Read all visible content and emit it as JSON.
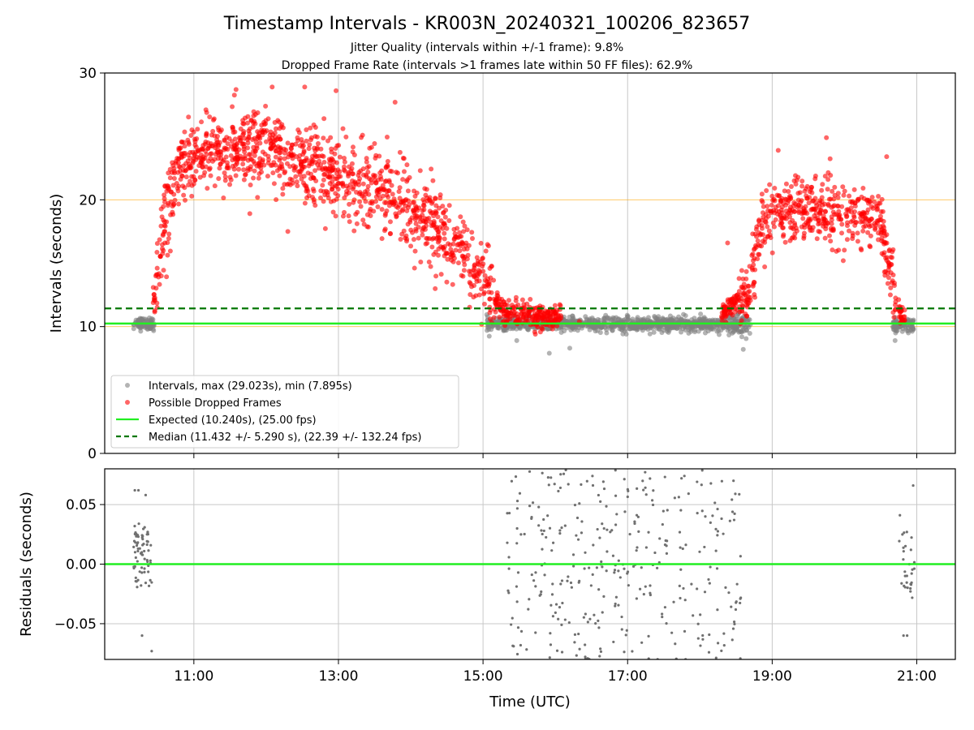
{
  "chart_data": {
    "type": "scatter",
    "title": "Timestamp Intervals - KR003N_20240321_100206_823657",
    "subtitle_lines": [
      "Jitter Quality (intervals within +/-1 frame): 9.8%",
      "Dropped Frame Rate (intervals >1 frames late within 50 FF files): 62.9%"
    ],
    "xlabel": "Time (UTC)",
    "x_ticks": [
      "11:00",
      "13:00",
      "15:00",
      "17:00",
      "19:00",
      "21:00"
    ],
    "x_range": [
      "09:46",
      "21:32"
    ],
    "grid": true,
    "top_panel": {
      "ylabel": "Intervals (seconds)",
      "ylim": [
        0,
        30
      ],
      "y_ticks": [
        "0",
        "10",
        "20",
        "30"
      ],
      "reference_lines": [
        {
          "y": 10,
          "color": "#ffa500"
        },
        {
          "y": 20,
          "color": "#ffa500"
        },
        {
          "y": 30,
          "color": "#ffa500"
        }
      ],
      "expected_line": {
        "y": 10.24,
        "color": "#22ee22"
      },
      "median_line": {
        "y": 11.432,
        "color": "#007700"
      },
      "legend": {
        "placement": "lower-left",
        "entries": [
          {
            "label": "Intervals, max (29.023s), min (7.895s)",
            "marker": "dot",
            "color": "#808080"
          },
          {
            "label": "Possible Dropped Frames",
            "marker": "dot",
            "color": "#ff0000"
          },
          {
            "label": "Expected (10.240s), (25.00 fps)",
            "marker": "line",
            "color": "#22ee22"
          },
          {
            "label": "Median (11.432 +/- 5.290 s), (22.39 +/- 132.24 fps)",
            "marker": "dashed",
            "color": "#007700"
          }
        ]
      },
      "series": [
        {
          "name": "Intervals",
          "color": "#808080",
          "segments": [
            {
              "from": "10:10",
              "to": "10:27",
              "mean": 10.24,
              "spread": 0.5
            },
            {
              "from": "15:03",
              "to": "18:15",
              "mean": 10.2,
              "spread": 0.55
            },
            {
              "from": "18:15",
              "to": "18:42",
              "mean": 10.1,
              "spread": 0.8
            },
            {
              "from": "20:40",
              "to": "20:58",
              "mean": 10.1,
              "spread": 0.6
            }
          ],
          "points": [
            [
              "15:55",
              7.9
            ],
            [
              "16:12",
              8.3
            ],
            [
              "18:36",
              8.2
            ],
            [
              "20:42",
              8.9
            ],
            [
              "15:28",
              8.9
            ]
          ]
        },
        {
          "name": "Possible Dropped Frames",
          "color": "#ff0000",
          "trend": [
            [
              "10:26",
              12.0
            ],
            [
              "10:35",
              18.0
            ],
            [
              "10:45",
              22.0
            ],
            [
              "11:00",
              23.5
            ],
            [
              "11:30",
              24.2
            ],
            [
              "12:00",
              23.8
            ],
            [
              "12:30",
              23.0
            ],
            [
              "13:00",
              21.8
            ],
            [
              "13:30",
              20.8
            ],
            [
              "14:00",
              19.2
            ],
            [
              "14:20",
              18.0
            ],
            [
              "14:40",
              16.0
            ],
            [
              "15:00",
              14.0
            ],
            [
              "15:10",
              12.0
            ],
            [
              "15:20",
              11.0
            ],
            [
              "16:05",
              10.6
            ]
          ],
          "trend_spread": 1.5,
          "secondary_trend": [
            [
              "18:18",
              11.0
            ],
            [
              "18:25",
              11.5
            ],
            [
              "18:40",
              12.5
            ],
            [
              "18:50",
              17.5
            ],
            [
              "19:00",
              19.0
            ],
            [
              "19:30",
              19.2
            ],
            [
              "20:00",
              18.8
            ],
            [
              "20:30",
              18.5
            ],
            [
              "20:35",
              16.0
            ],
            [
              "20:42",
              12.0
            ],
            [
              "20:50",
              10.4
            ]
          ],
          "secondary_spread": 1.2,
          "points": [
            [
              "11:35",
              28.7
            ],
            [
              "12:05",
              28.9
            ],
            [
              "12:32",
              28.9
            ],
            [
              "12:58",
              28.6
            ],
            [
              "13:47",
              27.7
            ],
            [
              "19:45",
              24.9
            ],
            [
              "19:05",
              23.9
            ],
            [
              "20:35",
              23.4
            ],
            [
              "12:18",
              17.5
            ],
            [
              "11:10",
              27.1
            ],
            [
              "12:48",
              26.4
            ],
            [
              "13:20",
              25.1
            ],
            [
              "18:23",
              16.6
            ],
            [
              "16:20",
              10.4
            ],
            [
              "15:45",
              11.5
            ]
          ]
        }
      ]
    },
    "bottom_panel": {
      "ylabel": "Residuals (seconds)",
      "ylim": [
        -0.08,
        0.08
      ],
      "y_ticks": [
        "0.05",
        "0.00",
        "−0.05"
      ],
      "zero_line": {
        "y": 0,
        "color": "#22ee22"
      },
      "series": [
        {
          "name": "Residuals",
          "color": "#707070",
          "clusters": [
            {
              "from": "10:10",
              "to": "10:25",
              "count": 70,
              "mean": 0.005,
              "spread": 0.03
            },
            {
              "from": "15:20",
              "to": "18:35",
              "count": 330,
              "mean": 0.0,
              "spread": 0.08
            },
            {
              "from": "20:45",
              "to": "20:58",
              "count": 30,
              "mean": 0.0,
              "spread": 0.03
            }
          ],
          "points": [
            [
              "10:11",
              0.062
            ],
            [
              "10:14",
              0.062
            ],
            [
              "10:20",
              0.058
            ],
            [
              "10:25",
              -0.073
            ],
            [
              "10:17",
              -0.06
            ],
            [
              "20:46",
              0.041
            ],
            [
              "20:57",
              0.066
            ],
            [
              "20:49",
              -0.06
            ],
            [
              "20:52",
              -0.06
            ]
          ]
        }
      ]
    }
  }
}
